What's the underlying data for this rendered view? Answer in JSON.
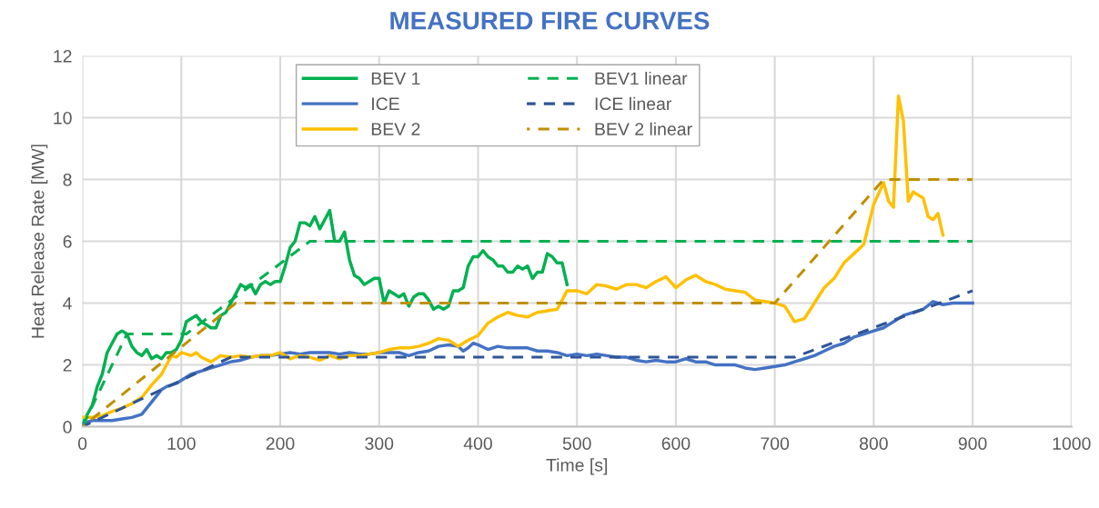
{
  "chart_data": {
    "type": "line",
    "title": "MEASURED FIRE CURVES",
    "xlabel": "Time [s]",
    "ylabel": "Heat Release Rate [MW]",
    "xlim": [
      0,
      1000
    ],
    "xticks": [
      0,
      100,
      200,
      300,
      400,
      500,
      600,
      700,
      800,
      900,
      1000
    ],
    "ylim": [
      0,
      12
    ],
    "yticks": [
      0,
      2,
      4,
      6,
      8,
      10,
      12
    ],
    "grid": true,
    "legend": "top",
    "marker": "none",
    "series": [
      {
        "name": "BEV 1",
        "color": "#00b050",
        "line_style": "solid",
        "x": [
          0,
          10,
          15,
          20,
          25,
          30,
          35,
          40,
          45,
          50,
          55,
          60,
          65,
          70,
          75,
          80,
          85,
          90,
          95,
          100,
          105,
          110,
          115,
          120,
          125,
          130,
          135,
          140,
          145,
          150,
          155,
          160,
          165,
          170,
          175,
          180,
          185,
          190,
          195,
          200,
          205,
          210,
          215,
          220,
          225,
          230,
          235,
          240,
          245,
          250,
          255,
          260,
          265,
          270,
          275,
          280,
          285,
          290,
          295,
          300,
          305,
          310,
          315,
          320,
          325,
          330,
          335,
          340,
          345,
          350,
          355,
          360,
          365,
          370,
          375,
          380,
          385,
          390,
          395,
          400,
          405,
          410,
          415,
          420,
          425,
          430,
          435,
          440,
          445,
          450,
          455,
          460,
          465,
          470,
          475,
          480,
          485,
          490
        ],
        "values": [
          0.1,
          0.7,
          1.3,
          1.7,
          2.4,
          2.7,
          3.0,
          3.1,
          3.0,
          2.6,
          2.4,
          2.3,
          2.5,
          2.2,
          2.3,
          2.2,
          2.4,
          2.4,
          2.5,
          2.8,
          3.4,
          3.5,
          3.6,
          3.4,
          3.3,
          3.2,
          3.2,
          3.6,
          3.7,
          4.0,
          4.3,
          4.6,
          4.5,
          4.6,
          4.3,
          4.6,
          4.7,
          4.6,
          4.7,
          4.7,
          5.2,
          5.8,
          6.0,
          6.6,
          6.6,
          6.5,
          6.8,
          6.4,
          6.7,
          7.0,
          6.0,
          6.0,
          6.3,
          5.4,
          4.9,
          4.8,
          4.6,
          4.7,
          4.8,
          4.8,
          4.0,
          4.4,
          4.3,
          4.2,
          4.3,
          3.9,
          4.2,
          4.3,
          4.3,
          4.1,
          3.8,
          3.9,
          3.8,
          3.9,
          4.4,
          4.4,
          4.5,
          5.2,
          5.5,
          5.5,
          5.7,
          5.5,
          5.4,
          5.2,
          5.2,
          5.0,
          5.0,
          5.2,
          5.1,
          5.2,
          4.8,
          5.0,
          5.0,
          5.6,
          5.5,
          5.3,
          5.3,
          4.6
        ]
      },
      {
        "name": "ICE",
        "color": "#4472c4",
        "line_style": "solid",
        "x": [
          0,
          10,
          20,
          30,
          40,
          50,
          55,
          60,
          65,
          70,
          75,
          80,
          85,
          90,
          95,
          100,
          110,
          120,
          130,
          140,
          150,
          160,
          170,
          180,
          190,
          200,
          210,
          220,
          230,
          240,
          250,
          260,
          270,
          280,
          290,
          300,
          310,
          320,
          330,
          340,
          350,
          360,
          370,
          380,
          385,
          390,
          395,
          400,
          410,
          420,
          430,
          440,
          450,
          460,
          470,
          480,
          490,
          500,
          510,
          520,
          530,
          540,
          550,
          560,
          570,
          580,
          590,
          600,
          610,
          620,
          630,
          640,
          650,
          660,
          670,
          680,
          690,
          700,
          710,
          720,
          730,
          740,
          750,
          760,
          770,
          780,
          790,
          800,
          810,
          820,
          830,
          840,
          850,
          860,
          870,
          880,
          890,
          900
        ],
        "values": [
          0.1,
          0.2,
          0.2,
          0.2,
          0.25,
          0.3,
          0.35,
          0.4,
          0.6,
          0.8,
          1.0,
          1.2,
          1.3,
          1.35,
          1.4,
          1.5,
          1.7,
          1.8,
          1.9,
          2.0,
          2.1,
          2.15,
          2.25,
          2.3,
          2.3,
          2.35,
          2.4,
          2.35,
          2.4,
          2.4,
          2.4,
          2.35,
          2.4,
          2.35,
          2.35,
          2.4,
          2.4,
          2.4,
          2.3,
          2.4,
          2.45,
          2.6,
          2.65,
          2.6,
          2.45,
          2.55,
          2.7,
          2.65,
          2.5,
          2.6,
          2.55,
          2.55,
          2.55,
          2.45,
          2.45,
          2.4,
          2.3,
          2.35,
          2.3,
          2.35,
          2.3,
          2.25,
          2.25,
          2.15,
          2.1,
          2.15,
          2.1,
          2.1,
          2.2,
          2.1,
          2.1,
          2.0,
          2.0,
          2.0,
          1.9,
          1.85,
          1.9,
          1.95,
          2.0,
          2.1,
          2.2,
          2.3,
          2.45,
          2.6,
          2.7,
          2.9,
          3.0,
          3.1,
          3.2,
          3.4,
          3.6,
          3.7,
          3.8,
          4.05,
          3.95,
          4.0,
          4.0,
          4.0
        ]
      },
      {
        "name": "BEV 2",
        "color": "#ffc000",
        "line_style": "solid",
        "x": [
          0,
          10,
          20,
          30,
          40,
          50,
          60,
          70,
          80,
          85,
          90,
          95,
          100,
          110,
          115,
          120,
          130,
          140,
          150,
          160,
          170,
          180,
          190,
          200,
          210,
          220,
          230,
          240,
          250,
          260,
          270,
          280,
          290,
          300,
          310,
          320,
          330,
          340,
          350,
          360,
          370,
          380,
          390,
          400,
          410,
          420,
          430,
          440,
          450,
          460,
          470,
          480,
          490,
          500,
          510,
          520,
          530,
          540,
          550,
          560,
          570,
          580,
          590,
          600,
          610,
          620,
          630,
          640,
          650,
          660,
          670,
          680,
          690,
          700,
          710,
          720,
          730,
          740,
          750,
          760,
          770,
          780,
          790,
          800,
          810,
          815,
          820,
          825,
          830,
          835,
          840,
          850,
          855,
          860,
          865,
          870
        ],
        "values": [
          0.3,
          0.3,
          0.35,
          0.5,
          0.6,
          0.75,
          0.95,
          1.35,
          1.7,
          2.0,
          2.3,
          2.25,
          2.4,
          2.3,
          2.4,
          2.25,
          2.1,
          2.3,
          2.25,
          2.3,
          2.25,
          2.3,
          2.3,
          2.4,
          2.2,
          2.3,
          2.25,
          2.15,
          2.3,
          2.2,
          2.3,
          2.3,
          2.35,
          2.4,
          2.5,
          2.55,
          2.55,
          2.6,
          2.7,
          2.85,
          2.8,
          2.6,
          2.8,
          2.95,
          3.35,
          3.55,
          3.7,
          3.6,
          3.55,
          3.7,
          3.75,
          3.8,
          4.4,
          4.4,
          4.3,
          4.6,
          4.55,
          4.45,
          4.6,
          4.6,
          4.5,
          4.7,
          4.85,
          4.5,
          4.75,
          4.9,
          4.7,
          4.6,
          4.45,
          4.4,
          4.35,
          4.1,
          4.05,
          4.0,
          3.9,
          3.4,
          3.5,
          4.0,
          4.5,
          4.8,
          5.3,
          5.6,
          5.9,
          7.2,
          7.9,
          7.3,
          7.1,
          10.7,
          9.9,
          7.3,
          7.6,
          7.4,
          6.8,
          6.7,
          6.9,
          6.2
        ]
      },
      {
        "name": "BEV1 linear",
        "color": "#00b050",
        "line_style": "dashed",
        "x": [
          0,
          45,
          105,
          230,
          900
        ],
        "values": [
          0,
          3,
          3,
          6,
          6
        ]
      },
      {
        "name": "ICE linear",
        "color": "#2f5597",
        "line_style": "dashed",
        "x": [
          0,
          150,
          720,
          900
        ],
        "values": [
          0,
          2.25,
          2.25,
          4.4
        ]
      },
      {
        "name": "BEV 2 linear",
        "color": "#bf9000",
        "line_style": "dashed",
        "x": [
          0,
          155,
          700,
          810,
          900
        ],
        "values": [
          0,
          4,
          4,
          8,
          8
        ]
      }
    ]
  }
}
